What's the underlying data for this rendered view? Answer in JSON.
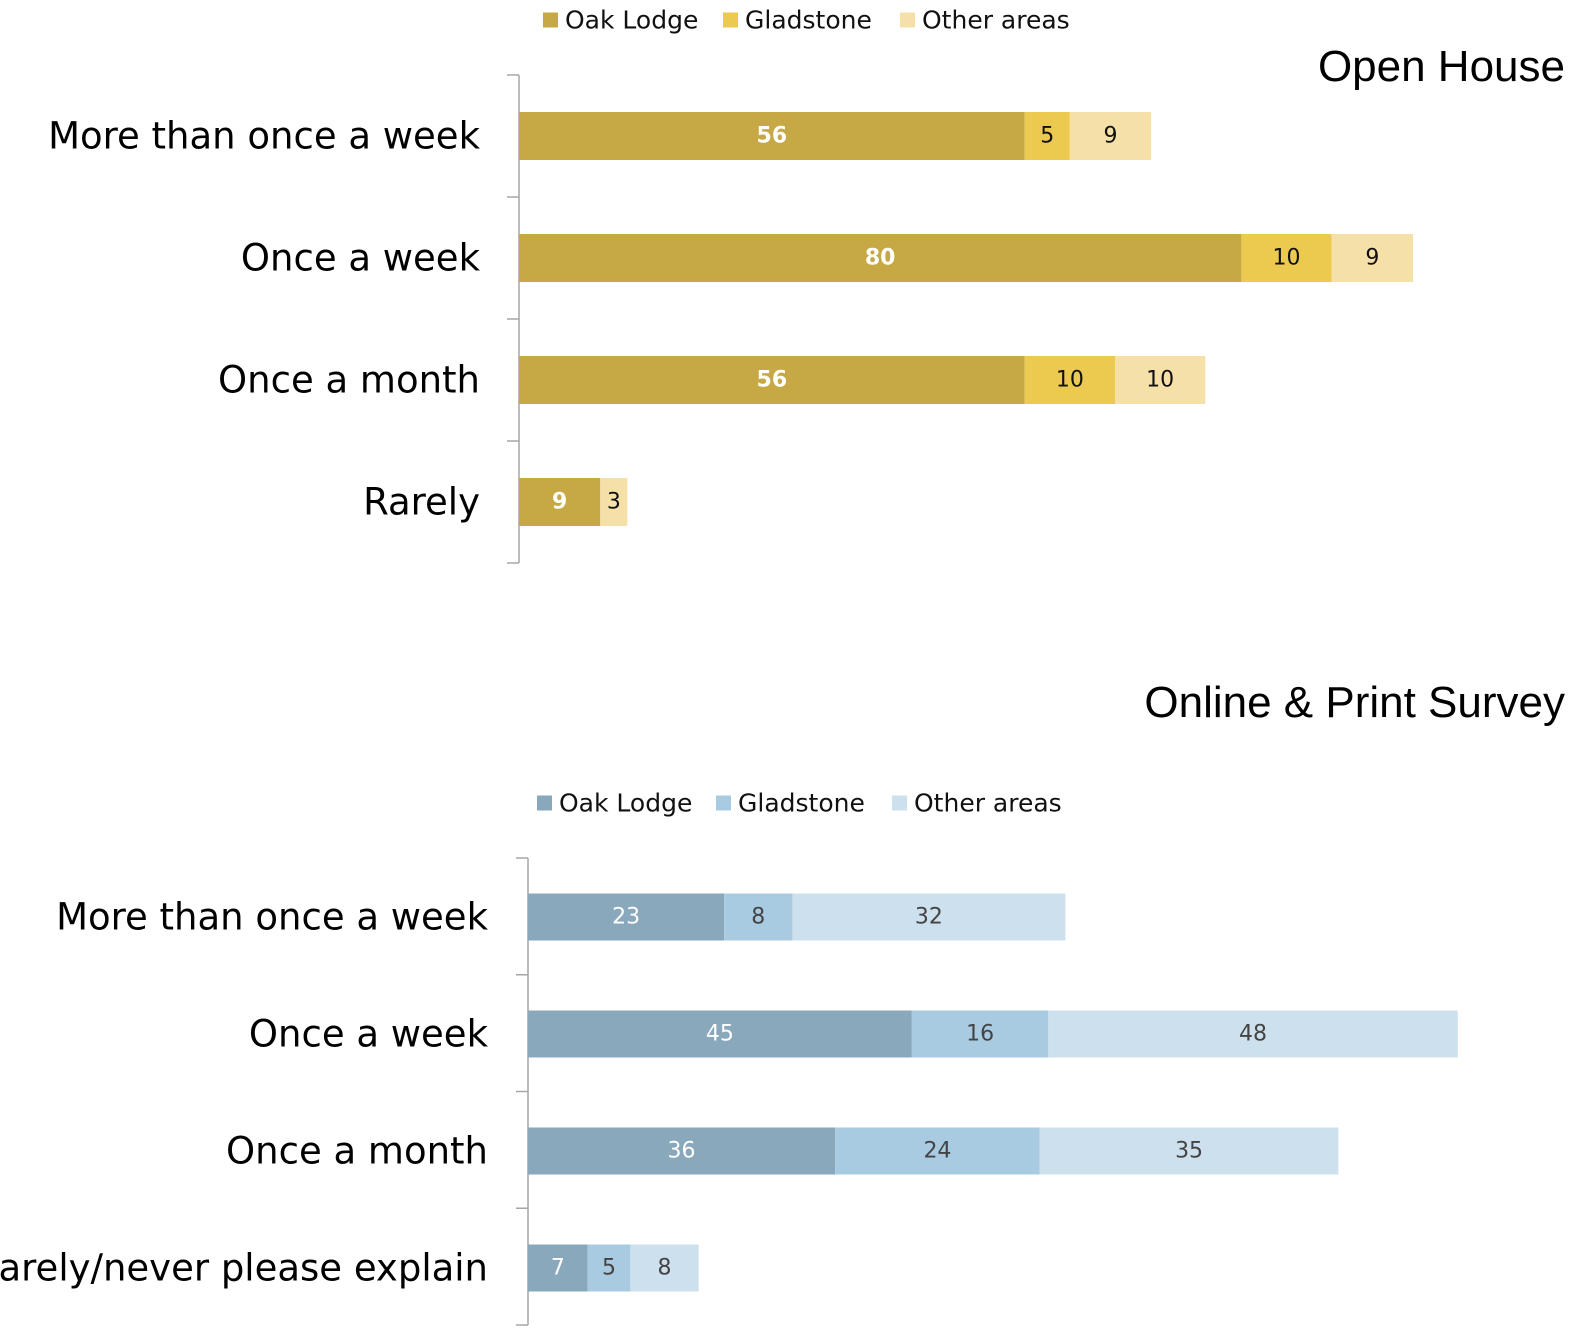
{
  "chart_data": [
    {
      "type": "bar",
      "orientation": "horizontal",
      "stacked": true,
      "title": "Open House",
      "categories": [
        "More than once a week",
        "Once a week",
        "Once a month",
        "Rarely"
      ],
      "series": [
        {
          "name": "Oak Lodge",
          "color": "#c6a944",
          "values": [
            56,
            80,
            56,
            9
          ]
        },
        {
          "name": "Gladstone",
          "color": "#ecc94f",
          "values": [
            5,
            10,
            10,
            0
          ]
        },
        {
          "name": "Other areas",
          "color": "#f5e0a8",
          "values": [
            9,
            9,
            10,
            3
          ]
        }
      ],
      "xlim": [
        0,
        100
      ],
      "grid": false,
      "legend_position": "top",
      "data_label_colors": [
        "#ffffff",
        "#111111",
        "#111111"
      ],
      "data_label_bold": [
        true,
        false,
        false
      ]
    },
    {
      "type": "bar",
      "orientation": "horizontal",
      "stacked": true,
      "title": "Online & Print Survey",
      "categories": [
        "More than once a week",
        "Once a week",
        "Once a month",
        "Rarely/never please explain"
      ],
      "series": [
        {
          "name": "Oak Lodge",
          "color": "#8aa8bc",
          "values": [
            23,
            45,
            36,
            7
          ]
        },
        {
          "name": "Gladstone",
          "color": "#a8cbe2",
          "values": [
            8,
            16,
            24,
            5
          ]
        },
        {
          "name": "Other areas",
          "color": "#cde0ed",
          "values": [
            32,
            48,
            35,
            8
          ]
        }
      ],
      "xlim": [
        0,
        109
      ],
      "grid": false,
      "legend_position": "top",
      "data_label_colors": [
        "#ffffff",
        "#444444",
        "#444444"
      ],
      "data_label_bold": [
        false,
        false,
        false
      ]
    }
  ]
}
